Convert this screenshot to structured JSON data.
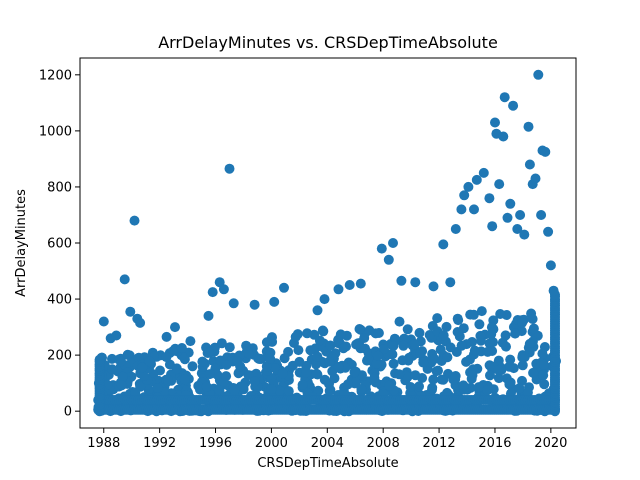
{
  "chart_data": {
    "type": "scatter",
    "title": "ArrDelayMinutes vs. CRSDepTimeAbsolute",
    "xlabel": "CRSDepTimeAbsolute",
    "ylabel": "ArrDelayMinutes",
    "xlim": [
      1986.3,
      2021.8
    ],
    "ylim": [
      -60,
      1260
    ],
    "xticks": [
      1988,
      1992,
      1996,
      2000,
      2004,
      2008,
      2012,
      2016,
      2020
    ],
    "yticks": [
      0,
      200,
      400,
      600,
      800,
      1000,
      1200
    ],
    "grid": false,
    "legend": "none",
    "marker_color": "#1f77b4",
    "series": [
      {
        "points": [
          [
            1988.0,
            320
          ],
          [
            1988.5,
            260
          ],
          [
            1988.9,
            270
          ],
          [
            1989.5,
            470
          ],
          [
            1989.9,
            355
          ],
          [
            1990.2,
            680
          ],
          [
            1990.4,
            330
          ],
          [
            1990.6,
            315
          ],
          [
            1992.5,
            265
          ],
          [
            1993.1,
            300
          ],
          [
            1994.2,
            250
          ],
          [
            1995.5,
            340
          ],
          [
            1995.8,
            425
          ],
          [
            1996.3,
            460
          ],
          [
            1996.6,
            435
          ],
          [
            1997.0,
            865
          ],
          [
            1997.3,
            385
          ],
          [
            1998.8,
            380
          ],
          [
            2000.2,
            390
          ],
          [
            2000.9,
            440
          ],
          [
            2003.3,
            360
          ],
          [
            2003.8,
            400
          ],
          [
            2004.8,
            435
          ],
          [
            2005.6,
            450
          ],
          [
            2006.4,
            455
          ],
          [
            2007.9,
            580
          ],
          [
            2008.4,
            540
          ],
          [
            2008.7,
            600
          ],
          [
            2009.3,
            465
          ],
          [
            2010.3,
            460
          ],
          [
            2011.6,
            445
          ],
          [
            2012.3,
            595
          ],
          [
            2012.8,
            460
          ],
          [
            2013.2,
            650
          ],
          [
            2013.6,
            720
          ],
          [
            2013.8,
            770
          ],
          [
            2014.1,
            800
          ],
          [
            2014.5,
            720
          ],
          [
            2014.7,
            825
          ],
          [
            2015.2,
            850
          ],
          [
            2015.6,
            760
          ],
          [
            2015.8,
            660
          ],
          [
            2016.0,
            1030
          ],
          [
            2016.1,
            990
          ],
          [
            2016.3,
            810
          ],
          [
            2016.6,
            980
          ],
          [
            2016.7,
            1120
          ],
          [
            2016.9,
            690
          ],
          [
            2017.1,
            740
          ],
          [
            2017.3,
            1090
          ],
          [
            2017.6,
            650
          ],
          [
            2017.8,
            700
          ],
          [
            2018.1,
            630
          ],
          [
            2018.4,
            1015
          ],
          [
            2018.5,
            880
          ],
          [
            2018.7,
            810
          ],
          [
            2018.9,
            830
          ],
          [
            2019.1,
            1200
          ],
          [
            2019.3,
            700
          ],
          [
            2019.4,
            930
          ],
          [
            2019.6,
            925
          ],
          [
            2019.8,
            640
          ],
          [
            2020.0,
            520
          ],
          [
            2020.2,
            430
          ]
        ]
      }
    ]
  }
}
